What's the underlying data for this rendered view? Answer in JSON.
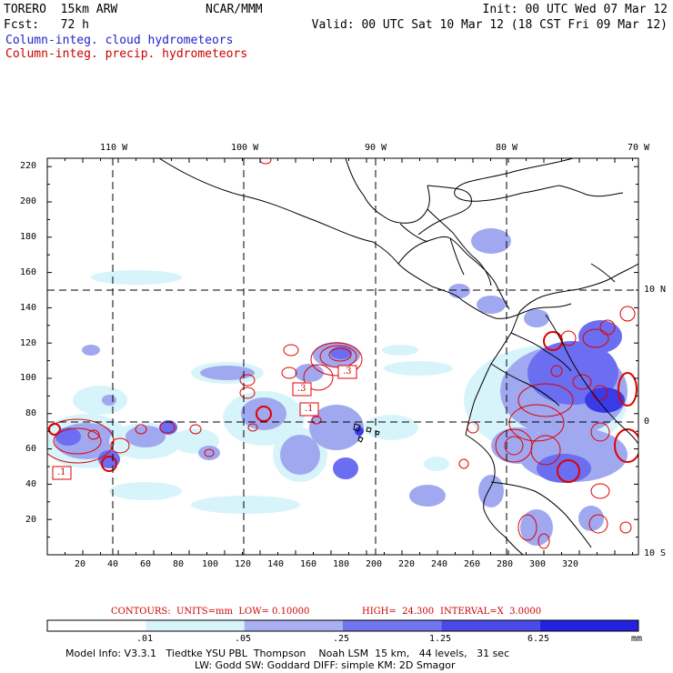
{
  "header": {
    "model": "TORERO  15km ARW",
    "center": "NCAR/MMM",
    "init": "Init: 00 UTC Wed 07 Mar 12",
    "fcst": "Fcst:   72 h",
    "valid": "Valid: 00 UTC Sat 10 Mar 12 (18 CST Fri 09 Mar 12)"
  },
  "legend": {
    "cloud": "Column-integ. cloud hydrometeors",
    "precip": "Column-integ. precip. hydrometeors"
  },
  "map": {
    "lon_labels": [
      "110 W",
      "100 W",
      "90 W",
      "80 W",
      "70 W"
    ],
    "lat_labels": [
      "10 N",
      "0",
      "10 S"
    ],
    "x_ticks": [
      "20",
      "40",
      "60",
      "80",
      "100",
      "120",
      "140",
      "160",
      "180",
      "200",
      "220",
      "240",
      "260",
      "280",
      "300",
      "320"
    ],
    "y_ticks": [
      "20",
      "40",
      "60",
      "80",
      "100",
      "120",
      "140",
      "160",
      "180",
      "200",
      "220"
    ],
    "contour_labels": [
      ".3",
      ".3",
      ".1",
      ".1"
    ],
    "colors": {
      "coast": "#000000",
      "contour": "#e00000",
      "light": "#d8f4fb",
      "mid": "#a0a8f0",
      "strong": "#6b6ef0",
      "deep": "#3a3ae6"
    }
  },
  "contour_info": {
    "units": "CONTOURS:  UNITS=mm  LOW= 0.10000",
    "high": "HIGH=  24.300",
    "interval": "INTERVAL=X  3.0000"
  },
  "colorbar": {
    "labels": [
      ".01",
      ".05",
      ".25",
      "1.25",
      "6.25"
    ],
    "unit": "mm",
    "colors": [
      "#ffffff",
      "#d8f4fb",
      "#a8b0f2",
      "#7276ee",
      "#4a4ae8",
      "#2222e0"
    ]
  },
  "model_info": {
    "line1": "Model Info: V3.3.1   Tiedtke YSU PBL  Thompson    Noah LSM  15 km,   44 levels,   31 sec",
    "line2": "LW: Godd SW: Goddard DIFF: simple KM: 2D Smagor"
  }
}
